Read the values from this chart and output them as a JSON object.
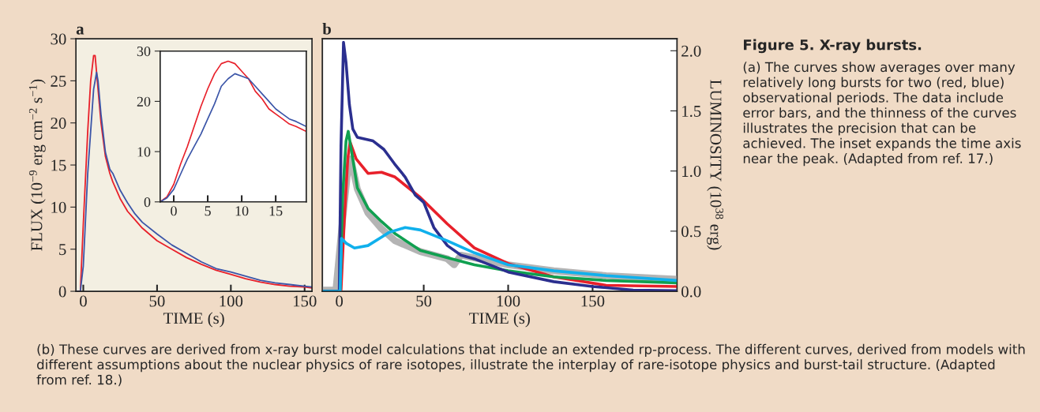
{
  "chart_data": [
    {
      "type": "line",
      "title": "a",
      "xlabel": "TIME (s)",
      "ylabel": "FLUX (10$^{−9}$ erg cm$^{−2}$ s$^{−1}$)",
      "xlim": [
        -5,
        155
      ],
      "xticks": [
        0,
        50,
        100,
        150
      ],
      "ylim": [
        0,
        30
      ],
      "yticks": [
        0,
        5,
        10,
        15,
        20,
        25,
        30
      ],
      "series": [
        {
          "color": "#e8202a",
          "x": [
            -5,
            -2,
            0,
            3,
            5,
            7,
            8,
            10,
            12,
            15,
            18,
            20,
            25,
            30,
            35,
            40,
            50,
            60,
            70,
            80,
            90,
            100,
            110,
            120,
            130,
            140,
            150,
            155
          ],
          "values": [
            0,
            0,
            8,
            19,
            25,
            28,
            28,
            24,
            20,
            16,
            14,
            13,
            11,
            9.5,
            8.5,
            7.5,
            6,
            5,
            4,
            3.2,
            2.5,
            2,
            1.5,
            1.1,
            0.8,
            0.6,
            0.5,
            0.4
          ]
        },
        {
          "color": "#3b55a8",
          "x": [
            -5,
            -2,
            0,
            3,
            5,
            7,
            9,
            10,
            12,
            15,
            18,
            20,
            25,
            30,
            35,
            40,
            50,
            60,
            70,
            80,
            90,
            100,
            110,
            120,
            130,
            140,
            150,
            155
          ],
          "values": [
            0,
            0,
            3,
            14,
            19,
            24,
            26,
            25,
            21,
            16.5,
            14.5,
            14,
            12,
            10.5,
            9.2,
            8.2,
            6.8,
            5.5,
            4.5,
            3.5,
            2.7,
            2.3,
            1.8,
            1.3,
            1,
            0.8,
            0.6,
            0.5
          ]
        }
      ]
    },
    {
      "type": "line",
      "xlim": [
        -2,
        19.5
      ],
      "xticks": [
        0,
        5,
        10,
        15
      ],
      "ylim": [
        0,
        30
      ],
      "yticks": [
        0,
        10,
        20,
        30
      ],
      "series": [
        {
          "color": "#e8202a",
          "x": [
            -2,
            -1,
            0,
            1,
            2,
            3,
            4,
            5,
            6,
            7,
            8,
            9,
            10,
            11,
            12,
            13,
            14,
            15,
            16,
            17,
            18,
            19.5
          ],
          "values": [
            0,
            1,
            3.5,
            7.5,
            11,
            15,
            19,
            22.5,
            25.5,
            27.5,
            28,
            27.5,
            26,
            24.5,
            22,
            20.5,
            18.5,
            17.5,
            16.5,
            15.5,
            15,
            14
          ]
        },
        {
          "color": "#3b55a8",
          "x": [
            -2,
            -1,
            0,
            1,
            2,
            3,
            4,
            5,
            6,
            7,
            8,
            9,
            10,
            11,
            12,
            13,
            14,
            15,
            16,
            17,
            18,
            19.5
          ],
          "values": [
            0,
            0.8,
            2.5,
            5.5,
            8.5,
            11,
            13.5,
            16.5,
            19.5,
            23,
            24.5,
            25.5,
            25,
            24.5,
            23,
            21.5,
            20,
            18.5,
            17.5,
            16.5,
            16,
            15
          ]
        }
      ]
    },
    {
      "type": "line",
      "title": "b",
      "xlabel": "TIME (s)",
      "y2label": "LUMINOSITY (10$^{38}$ erg)",
      "xlim": [
        -10,
        200
      ],
      "xticks": [
        0,
        50,
        100,
        150
      ],
      "y2lim": [
        0,
        2.1
      ],
      "y2ticks": [
        {
          "value": 0,
          "label": "0.0"
        },
        0.5,
        {
          "value": 1,
          "label": "1.0"
        },
        1.5,
        {
          "value": 2,
          "label": "2.0"
        }
      ],
      "series": [
        {
          "color": "#b4b4b4",
          "axis": "y2",
          "x": [
            -10,
            -2,
            2,
            5,
            6.8,
            10.7,
            17,
            25,
            33,
            48,
            64,
            68,
            72,
            100,
            127,
            158,
            200
          ],
          "values": [
            0.01,
            0.01,
            0.6,
            1.0,
            1.1,
            0.85,
            0.65,
            0.52,
            0.42,
            0.33,
            0.27,
            0.22,
            0.3,
            0.22,
            0.17,
            0.13,
            0.1
          ]
        },
        {
          "color": "#e8202a",
          "axis": "y2",
          "x": [
            -10,
            1,
            3,
            5,
            6.4,
            10,
            17,
            25,
            33,
            48,
            64,
            80,
            100,
            127,
            158,
            200
          ],
          "values": [
            0,
            0,
            0.6,
            1.1,
            1.24,
            1.1,
            0.98,
            0.99,
            0.95,
            0.78,
            0.56,
            0.36,
            0.23,
            0.12,
            0.05,
            0.04
          ]
        },
        {
          "color": "#10a050",
          "axis": "y2",
          "x": [
            -10,
            0.5,
            2,
            4,
            5.3,
            8,
            10.7,
            17,
            25,
            33,
            48,
            64,
            80,
            100,
            127,
            158,
            200
          ],
          "values": [
            0,
            0,
            0.8,
            1.25,
            1.33,
            1.1,
            0.86,
            0.69,
            0.58,
            0.48,
            0.34,
            0.28,
            0.22,
            0.17,
            0.12,
            0.09,
            0.07
          ]
        },
        {
          "color": "#2b2f8f",
          "axis": "y2",
          "x": [
            -10,
            0,
            1,
            2.5,
            4,
            6,
            8,
            10.7,
            20,
            26.4,
            32.7,
            39,
            45,
            50,
            56,
            64,
            72,
            80,
            100,
            127,
            150,
            174,
            200
          ],
          "values": [
            0,
            0,
            1.2,
            2.07,
            1.9,
            1.55,
            1.35,
            1.28,
            1.25,
            1.18,
            1.06,
            0.95,
            0.8,
            0.74,
            0.53,
            0.38,
            0.3,
            0.27,
            0.16,
            0.08,
            0.04,
            0.01,
            0.005
          ]
        },
        {
          "color": "#10b0ec",
          "axis": "y2",
          "x": [
            -10,
            0.5,
            1.3,
            4,
            9,
            17,
            25,
            29.5,
            39,
            48,
            64,
            80,
            100,
            127,
            158,
            200
          ],
          "values": [
            0,
            0,
            0.44,
            0.4,
            0.36,
            0.38,
            0.45,
            0.49,
            0.53,
            0.51,
            0.42,
            0.32,
            0.22,
            0.17,
            0.13,
            0.09
          ]
        }
      ]
    },
    {
      "type": "other",
      "title": "Figure 5. X-ray bursts.",
      "annotations": [
        "(a) The curves show averages over many relatively long bursts for two (red, blue) observational periods. The data include error bars, and the thinness of the curves illustrates the precision that can be achieved. The inset expands the time axis near the peak. (Adapted from ref. 17.)",
        "(b) These curves are derived from x-ray burst model calculations that include an extended rp-process. The different curves, derived from models with different assumptions about the nuclear physics of rare isotopes, illustrate the interplay of rare-isotope physics and burst-tail structure. (Adapted from ref. 18.)"
      ]
    }
  ]
}
